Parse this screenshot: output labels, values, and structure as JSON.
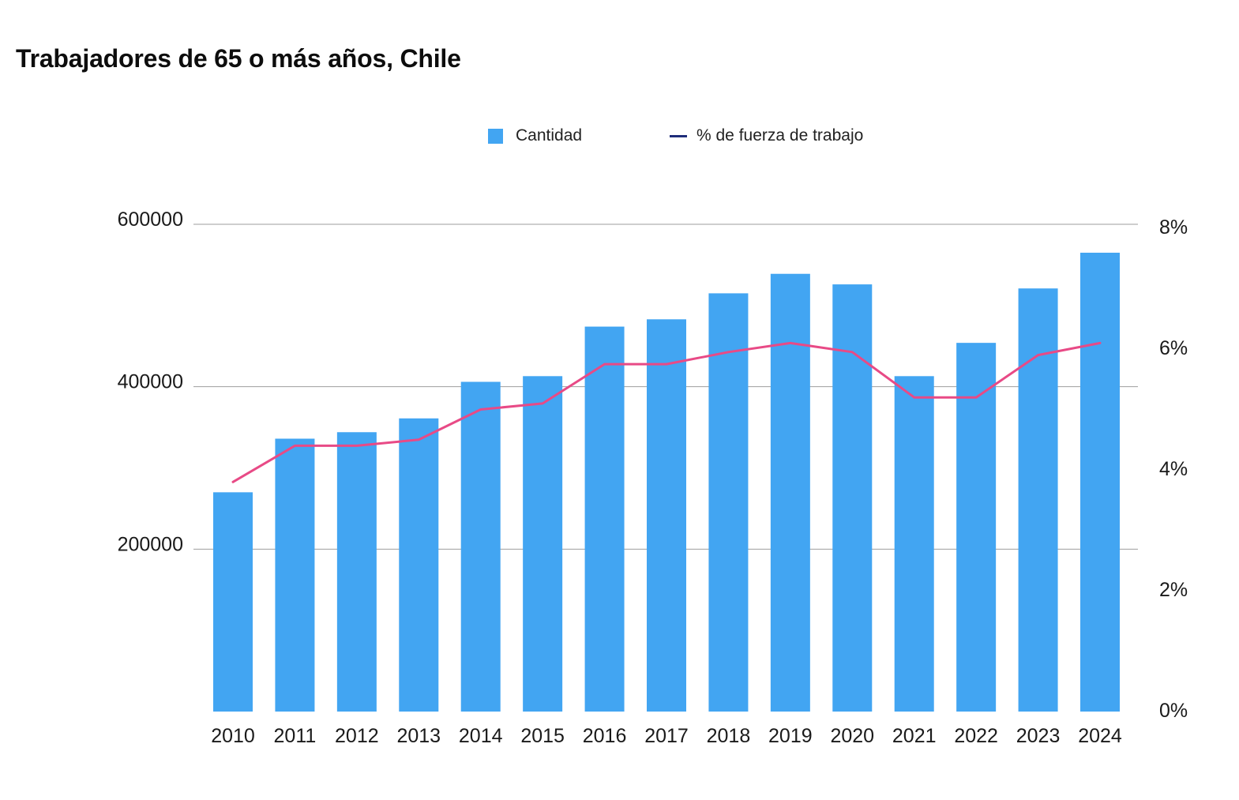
{
  "chart_data": {
    "type": "bar",
    "title": "Trabajadores de 65 o más años, Chile",
    "categories": [
      "2010",
      "2011",
      "2012",
      "2013",
      "2014",
      "2015",
      "2016",
      "2017",
      "2018",
      "2019",
      "2020",
      "2021",
      "2022",
      "2023",
      "2024"
    ],
    "series": [
      {
        "name": "Cantidad",
        "type": "bar",
        "axis": "left",
        "color": "#42a5f2",
        "values": [
          270000,
          336000,
          344000,
          361000,
          406000,
          413000,
          474000,
          483000,
          515000,
          539000,
          526000,
          413000,
          454000,
          521000,
          565000
        ]
      },
      {
        "name": "% de fuerza de trabajo",
        "type": "line",
        "axis": "right",
        "color": "#e84a86",
        "legend_color": "#1f2d7a",
        "values": [
          3.8,
          4.4,
          4.4,
          4.5,
          5.0,
          5.1,
          5.75,
          5.75,
          5.95,
          6.1,
          5.95,
          5.2,
          5.2,
          5.9,
          6.1
        ]
      }
    ],
    "y_left": {
      "ticks": [
        "200000",
        "400000",
        "600000"
      ],
      "tick_values": [
        200000,
        400000,
        600000
      ],
      "range": [
        0,
        600000
      ]
    },
    "y_right": {
      "ticks": [
        "0%",
        "2%",
        "4%",
        "6%",
        "8%"
      ],
      "tick_values": [
        0,
        2,
        4,
        6,
        8
      ],
      "range": [
        0,
        8
      ]
    },
    "grid": true,
    "legend_position": "top-center",
    "xlabel": "",
    "ylabel": ""
  }
}
